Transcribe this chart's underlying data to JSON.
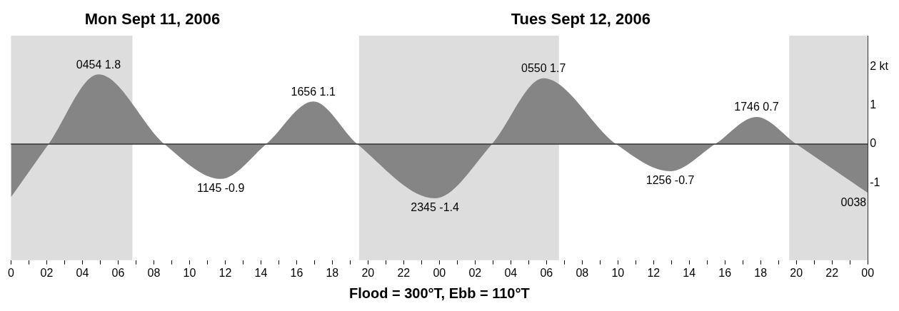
{
  "chart_data": {
    "type": "area",
    "xlabel": "Flood = 300°T, Ebb = 110°T",
    "x": [
      "2006-09-11T00:00",
      "2006-09-11T02:06",
      "2006-09-11T04:54",
      "2006-09-11T08:36",
      "2006-09-11T11:45",
      "2006-09-11T14:18",
      "2006-09-11T16:56",
      "2006-09-11T19:24",
      "2006-09-11T23:45",
      "2006-09-12T02:57",
      "2006-09-12T05:50",
      "2006-09-12T09:54",
      "2006-09-12T12:56",
      "2006-09-12T15:27",
      "2006-09-12T17:46",
      "2006-09-12T20:00",
      "2006-09-13T00:00"
    ],
    "series": [
      {
        "color": "#858585",
        "values": [
          -1.37,
          0,
          1.8,
          0,
          -0.9,
          0,
          1.1,
          0,
          -1.4,
          0,
          1.7,
          0,
          -0.7,
          0,
          0.7,
          0,
          -1.26
        ]
      }
    ],
    "xlim": [
      "2006-09-11T00:00",
      "2006-09-13T00:00"
    ],
    "xticks": [
      {
        "value": "2006-09-11T00:00",
        "label": "0"
      },
      {
        "value": "2006-09-11T01:00",
        "label": null
      },
      {
        "value": "2006-09-11T02:00",
        "label": "02"
      },
      {
        "value": "2006-09-11T03:00",
        "label": null
      },
      {
        "value": "2006-09-11T04:00",
        "label": "04"
      },
      {
        "value": "2006-09-11T05:00",
        "label": null
      },
      {
        "value": "2006-09-11T06:00",
        "label": "06"
      },
      {
        "value": "2006-09-11T07:00",
        "label": null
      },
      {
        "value": "2006-09-11T08:00",
        "label": "08"
      },
      {
        "value": "2006-09-11T09:00",
        "label": null
      },
      {
        "value": "2006-09-11T10:00",
        "label": "10"
      },
      {
        "value": "2006-09-11T11:00",
        "label": null
      },
      {
        "value": "2006-09-11T12:00",
        "label": "12"
      },
      {
        "value": "2006-09-11T13:00",
        "label": null
      },
      {
        "value": "2006-09-11T14:00",
        "label": "14"
      },
      {
        "value": "2006-09-11T15:00",
        "label": null
      },
      {
        "value": "2006-09-11T16:00",
        "label": "16"
      },
      {
        "value": "2006-09-11T17:00",
        "label": null
      },
      {
        "value": "2006-09-11T18:00",
        "label": "18"
      },
      {
        "value": "2006-09-11T19:00",
        "label": null
      },
      {
        "value": "2006-09-11T20:00",
        "label": "20"
      },
      {
        "value": "2006-09-11T21:00",
        "label": null
      },
      {
        "value": "2006-09-11T22:00",
        "label": "22"
      },
      {
        "value": "2006-09-11T23:00",
        "label": null
      },
      {
        "value": "2006-09-12T00:00",
        "label": "00"
      },
      {
        "value": "2006-09-12T01:00",
        "label": null
      },
      {
        "value": "2006-09-12T02:00",
        "label": "02"
      },
      {
        "value": "2006-09-12T03:00",
        "label": null
      },
      {
        "value": "2006-09-12T04:00",
        "label": "04"
      },
      {
        "value": "2006-09-12T05:00",
        "label": null
      },
      {
        "value": "2006-09-12T06:00",
        "label": "06"
      },
      {
        "value": "2006-09-12T07:00",
        "label": null
      },
      {
        "value": "2006-09-12T08:00",
        "label": "08"
      },
      {
        "value": "2006-09-12T09:00",
        "label": null
      },
      {
        "value": "2006-09-12T10:00",
        "label": "10"
      },
      {
        "value": "2006-09-12T11:00",
        "label": null
      },
      {
        "value": "2006-09-12T12:00",
        "label": "12"
      },
      {
        "value": "2006-09-12T13:00",
        "label": null
      },
      {
        "value": "2006-09-12T14:00",
        "label": "14"
      },
      {
        "value": "2006-09-12T15:00",
        "label": null
      },
      {
        "value": "2006-09-12T16:00",
        "label": "16"
      },
      {
        "value": "2006-09-12T17:00",
        "label": null
      },
      {
        "value": "2006-09-12T18:00",
        "label": "18"
      },
      {
        "value": "2006-09-12T19:00",
        "label": null
      },
      {
        "value": "2006-09-12T20:00",
        "label": "20"
      },
      {
        "value": "2006-09-12T21:00",
        "label": null
      },
      {
        "value": "2006-09-12T22:00",
        "label": "22"
      },
      {
        "value": "2006-09-12T23:00",
        "label": null
      },
      {
        "value": "2006-09-13T00:00",
        "label": "00"
      }
    ],
    "ylim": [
      -3,
      2.8
    ],
    "yticks": [
      -1,
      0,
      1,
      {
        "value": 2,
        "label": "2 kt"
      }
    ],
    "grid": false,
    "legend": false,
    "bands": [
      {
        "axis": "x",
        "from": "2006-09-11T00:00",
        "to": "2006-09-11T06:48",
        "color": "#dddddd"
      },
      {
        "axis": "x",
        "from": "2006-09-11T19:30",
        "to": "2006-09-12T06:42",
        "color": "#dddddd"
      },
      {
        "axis": "x",
        "from": "2006-09-12T19:36",
        "to": "2006-09-13T00:00",
        "color": "#dddddd"
      }
    ],
    "ref_lines": [
      {
        "axis": "y",
        "value": 0,
        "color": "#333333"
      }
    ],
    "annotations": [
      "Mon Sept 11, 2006",
      "Tues Sept 12, 2006",
      {
        "text": "0454 1.8",
        "x": "2006-09-11T04:54",
        "y": 1.8
      },
      {
        "text": "1145 -0.9",
        "x": "2006-09-11T11:45",
        "y": -0.9
      },
      {
        "text": "1656 1.1",
        "x": "2006-09-11T16:56",
        "y": 1.1
      },
      {
        "text": "2345 -1.4",
        "x": "2006-09-11T23:45",
        "y": -1.4
      },
      {
        "text": "0550 1.7",
        "x": "2006-09-12T05:50",
        "y": 1.7
      },
      {
        "text": "1256 -0.7",
        "x": "2006-09-12T12:56",
        "y": -0.7
      },
      {
        "text": "1746 0.7",
        "x": "2006-09-12T17:46",
        "y": 0.7
      },
      {
        "text": "0038",
        "x": "2006-09-13T00:00",
        "y": -1.26
      }
    ]
  }
}
